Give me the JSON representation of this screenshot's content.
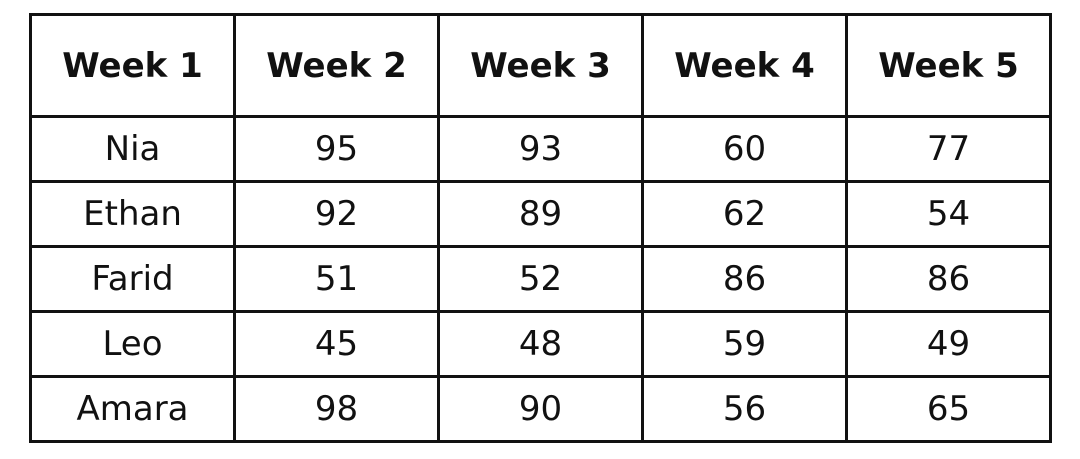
{
  "chart_data": {
    "type": "table",
    "columns": [
      "Week 1",
      "Week 2",
      "Week 3",
      "Week 4",
      "Week 5"
    ],
    "rows": [
      [
        "Nia",
        "95",
        "93",
        "60",
        "77"
      ],
      [
        "Ethan",
        "92",
        "89",
        "62",
        "54"
      ],
      [
        "Farid",
        "51",
        "52",
        "86",
        "86"
      ],
      [
        "Leo",
        "45",
        "48",
        "59",
        "49"
      ],
      [
        "Amara",
        "98",
        "90",
        "56",
        "65"
      ]
    ]
  }
}
